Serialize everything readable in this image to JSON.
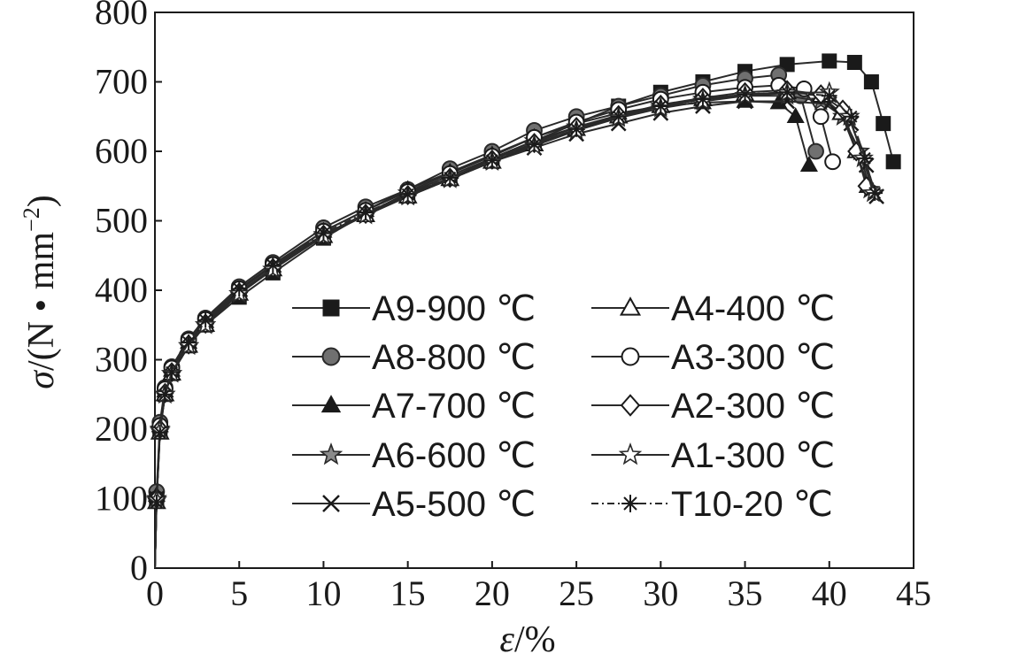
{
  "chart_data": {
    "type": "line",
    "xlabel_symbol": "ε",
    "xlabel_unit": "/%",
    "ylabel_symbol": "σ",
    "ylabel_unit": "/(N • mm",
    "ylabel_exp": "−2",
    "ylabel_close": ")",
    "xlim": [
      0,
      45
    ],
    "ylim": [
      0,
      800
    ],
    "xticks": [
      "0",
      "5",
      "10",
      "15",
      "20",
      "25",
      "30",
      "35",
      "40",
      "45"
    ],
    "yticks": [
      "0",
      "100",
      "200",
      "300",
      "400",
      "500",
      "600",
      "700",
      "800"
    ],
    "grid": false,
    "legend_position": "center-right",
    "series": [
      {
        "name": "A9-900 ℃",
        "marker": "square-filled",
        "dash": "solid",
        "x": [
          0,
          0.1,
          0.3,
          0.6,
          1,
          2,
          3,
          5,
          7,
          10,
          12.5,
          15,
          17.5,
          20,
          22.5,
          25,
          27.5,
          30,
          32.5,
          35,
          37.5,
          40,
          41.5,
          42.5,
          43.2,
          43.8
        ],
        "y": [
          0,
          100,
          200,
          250,
          280,
          320,
          350,
          390,
          425,
          475,
          510,
          540,
          565,
          590,
          615,
          640,
          665,
          685,
          700,
          715,
          725,
          730,
          728,
          700,
          640,
          585
        ]
      },
      {
        "name": "A8-800 ℃",
        "marker": "circle-filled",
        "dash": "solid",
        "x": [
          0,
          0.1,
          0.3,
          0.6,
          1,
          2,
          3,
          5,
          7,
          10,
          12.5,
          15,
          17.5,
          20,
          22.5,
          25,
          27.5,
          30,
          32.5,
          35,
          37,
          38.3,
          39.2
        ],
        "y": [
          0,
          110,
          210,
          260,
          290,
          330,
          360,
          405,
          440,
          490,
          520,
          545,
          575,
          600,
          630,
          650,
          665,
          680,
          695,
          705,
          710,
          680,
          600
        ]
      },
      {
        "name": "A7-700 ℃",
        "marker": "triangle-filled",
        "dash": "solid",
        "x": [
          0,
          0.1,
          0.3,
          0.6,
          1,
          2,
          3,
          5,
          7,
          10,
          12.5,
          15,
          17.5,
          20,
          22.5,
          25,
          27.5,
          30,
          32.5,
          35,
          37,
          38,
          38.8
        ],
        "y": [
          0,
          105,
          205,
          255,
          285,
          325,
          355,
          400,
          435,
          485,
          515,
          545,
          570,
          595,
          620,
          640,
          655,
          665,
          670,
          672,
          670,
          650,
          580
        ]
      },
      {
        "name": "A6-600 ℃",
        "marker": "star-gray",
        "dash": "solid",
        "x": [
          0,
          0.1,
          0.3,
          0.6,
          1,
          2,
          3,
          5,
          7,
          10,
          12.5,
          15,
          17.5,
          20,
          22.5,
          25,
          27.5,
          30,
          32.5,
          35,
          37.5,
          39.5,
          40.8,
          41.8,
          42.4
        ],
        "y": [
          0,
          100,
          200,
          250,
          280,
          320,
          350,
          395,
          430,
          480,
          510,
          540,
          560,
          590,
          615,
          635,
          650,
          665,
          675,
          680,
          680,
          672,
          650,
          600,
          545
        ]
      },
      {
        "name": "A5-500 ℃",
        "marker": "x",
        "dash": "solid",
        "x": [
          0,
          0.1,
          0.3,
          0.6,
          1,
          2,
          3,
          5,
          7,
          10,
          12.5,
          15,
          17.5,
          20,
          22.5,
          25,
          27.5,
          30,
          32.5,
          35,
          37.5,
          40,
          41.3,
          42.2,
          42.8
        ],
        "y": [
          0,
          100,
          200,
          255,
          285,
          325,
          355,
          400,
          435,
          480,
          510,
          535,
          560,
          585,
          605,
          625,
          640,
          655,
          665,
          672,
          672,
          668,
          640,
          580,
          535
        ]
      },
      {
        "name": "A4-400 ℃",
        "marker": "triangle-open",
        "dash": "solid",
        "x": [
          0,
          0.1,
          0.3,
          0.6,
          1,
          2,
          3,
          5,
          7,
          10,
          12.5,
          15,
          17.5,
          20,
          22.5,
          25,
          27.5,
          30,
          32.5,
          35,
          37.5,
          39.5,
          40.7,
          41.6,
          42.3
        ],
        "y": [
          0,
          95,
          195,
          250,
          280,
          320,
          350,
          395,
          430,
          478,
          508,
          535,
          560,
          585,
          610,
          632,
          650,
          665,
          675,
          682,
          685,
          680,
          655,
          600,
          550
        ]
      },
      {
        "name": "A3-300 ℃",
        "marker": "circle-open",
        "dash": "solid",
        "x": [
          0,
          0.1,
          0.3,
          0.6,
          1,
          2,
          3,
          5,
          7,
          10,
          12.5,
          15,
          17.5,
          20,
          22.5,
          25,
          27.5,
          30,
          32.5,
          35,
          37,
          38.5,
          39.5,
          40.2
        ],
        "y": [
          0,
          100,
          205,
          258,
          288,
          328,
          358,
          402,
          437,
          485,
          515,
          542,
          568,
          593,
          620,
          642,
          660,
          675,
          685,
          692,
          695,
          690,
          650,
          585
        ]
      },
      {
        "name": "A2-300 ℃",
        "marker": "diamond-open",
        "dash": "solid",
        "x": [
          0,
          0.1,
          0.3,
          0.6,
          1,
          2,
          3,
          5,
          7,
          10,
          12.5,
          15,
          17.5,
          20,
          22.5,
          25,
          27.5,
          30,
          32.5,
          35,
          37.5,
          39.5,
          40.8,
          41.6,
          42.2
        ],
        "y": [
          0,
          100,
          200,
          252,
          282,
          322,
          352,
          397,
          432,
          480,
          510,
          537,
          562,
          588,
          612,
          635,
          652,
          667,
          677,
          685,
          688,
          682,
          660,
          600,
          550
        ]
      },
      {
        "name": "A1-300 ℃",
        "marker": "star-white",
        "dash": "solid",
        "x": [
          0,
          0.1,
          0.3,
          0.6,
          1,
          2,
          3,
          5,
          7,
          10,
          12.5,
          15,
          17.5,
          20,
          22.5,
          25,
          27.5,
          30,
          32.5,
          35,
          37.5,
          40,
          41.2,
          42,
          42.6
        ],
        "y": [
          0,
          98,
          198,
          250,
          280,
          320,
          350,
          395,
          430,
          478,
          508,
          535,
          560,
          585,
          608,
          630,
          648,
          662,
          672,
          680,
          684,
          685,
          650,
          590,
          540
        ]
      },
      {
        "name": "T10-20 ℃",
        "marker": "asterisk",
        "dash": "dashdot",
        "x": [
          0,
          0.1,
          0.3,
          0.6,
          1,
          2,
          3,
          5,
          7,
          10,
          12.5,
          15,
          17.5,
          20,
          22.5,
          25,
          27.5,
          30,
          32.5,
          35,
          37.5,
          40,
          41.3,
          42.1,
          42.7
        ],
        "y": [
          0,
          95,
          195,
          250,
          282,
          325,
          357,
          402,
          436,
          482,
          512,
          538,
          562,
          587,
          610,
          632,
          650,
          665,
          675,
          682,
          685,
          680,
          650,
          590,
          540
        ]
      }
    ]
  }
}
